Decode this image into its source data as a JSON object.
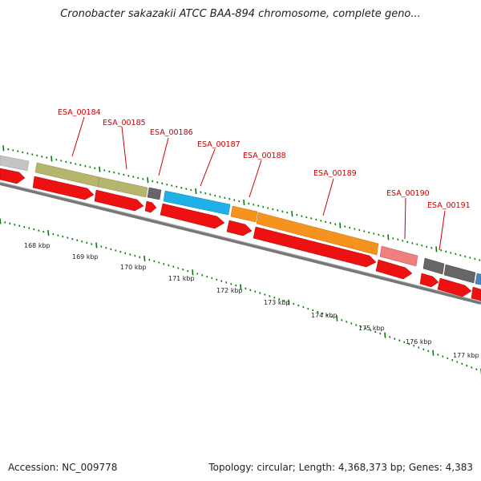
{
  "title": "Cronobacter sakazakii ATCC BAA-894 chromosome, complete geno...",
  "footer": {
    "accession": "Accession: NC_009778",
    "topology": "Topology: circular; Length: 4,368,373 bp; Genes: 4,383"
  },
  "colors": {
    "cds_red": "#ee1111",
    "olive": "#b5b56e",
    "gray_dark": "#666666",
    "gray_light": "#c4c4c4",
    "blue": "#1eb0e6",
    "orange": "#f5931e",
    "pink": "#ee8080",
    "steel_blue": "#4a86c0",
    "label_red": "#cc0000",
    "tick_green": "#117711"
  },
  "gene_labels": [
    {
      "name": "ESA_00184"
    },
    {
      "name": "ESA_00185"
    },
    {
      "name": "ESA_00186"
    },
    {
      "name": "ESA_00187"
    },
    {
      "name": "ESA_00188"
    },
    {
      "name": "ESA_00189"
    },
    {
      "name": "ESA_00190"
    },
    {
      "name": "ESA_00191"
    }
  ],
  "kbp_labels": [
    {
      "text": "168 kbp"
    },
    {
      "text": "169 kbp"
    },
    {
      "text": "170 kbp"
    },
    {
      "text": "171 kbp"
    },
    {
      "text": "172 kbp"
    },
    {
      "text": "173 kbp"
    },
    {
      "text": "174 kbp"
    },
    {
      "text": "175 kbp"
    },
    {
      "text": "176 kbp"
    },
    {
      "text": "177 kbp"
    }
  ]
}
